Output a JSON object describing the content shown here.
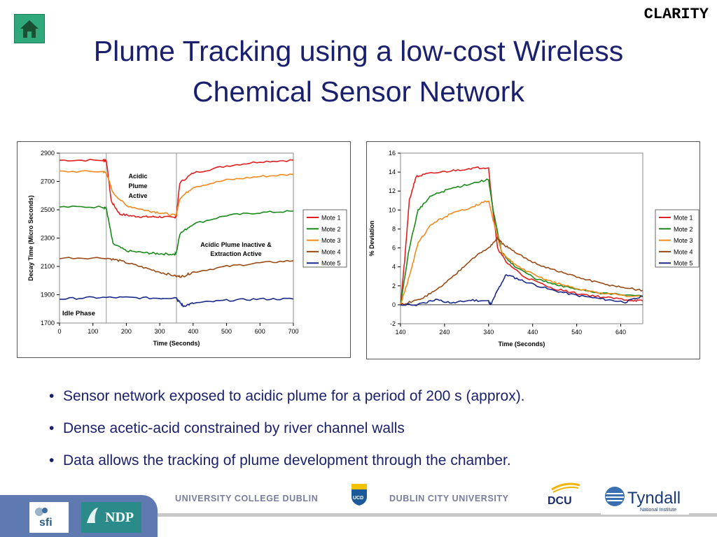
{
  "header": {
    "brand": "CLARITY",
    "title_line1": "Plume Tracking using a low-cost Wireless",
    "title_line2": "Chemical Sensor Network"
  },
  "colors": {
    "mote1": "#e02020",
    "mote2": "#1a8a1a",
    "mote3": "#f08a1e",
    "mote4": "#9a4a14",
    "mote5": "#1a2a8a",
    "title": "#1a1f6e"
  },
  "bullets": [
    "Sensor network exposed to acidic plume for a period of 200 s (approx).",
    "Dense acetic-acid constrained by river channel walls",
    "Data allows the tracking of plume development through the chamber."
  ],
  "footer": {
    "ucd": "UNIVERSITY COLLEGE DUBLIN",
    "dcu": "DUBLIN CITY UNIVERSITY",
    "ucd_logo_text": "UCD",
    "dcu_logo_text": "DCU",
    "tyndall_text": "Tyndall",
    "tyndall_sub": "National Institute",
    "sfi_text": "sfi",
    "ndp_text": "NDP"
  },
  "chart_data": [
    {
      "type": "line",
      "xlabel": "Time (Seconds)",
      "ylabel": "Decay Time (Micro Seconds)",
      "xlim": [
        0,
        700
      ],
      "ylim": [
        1700,
        2900
      ],
      "xticks": [
        0,
        100,
        200,
        300,
        400,
        500,
        600,
        700
      ],
      "yticks": [
        1700,
        1900,
        2100,
        2300,
        2500,
        2700,
        2900
      ],
      "legend": "right",
      "annotations": [
        "Acidic",
        "Plume",
        "Active",
        "Acidic Plume Inactive &",
        "Extraction Active",
        "Idle Phase"
      ],
      "phase_markers": [
        140,
        350
      ],
      "series": [
        {
          "name": "Mote 1",
          "x": [
            0,
            130,
            140,
            155,
            180,
            220,
            260,
            300,
            345,
            350,
            360,
            400,
            500,
            600,
            700
          ],
          "y": [
            2850,
            2850,
            2850,
            2560,
            2470,
            2455,
            2450,
            2450,
            2445,
            2460,
            2690,
            2760,
            2810,
            2840,
            2850
          ]
        },
        {
          "name": "Mote 2",
          "x": [
            0,
            130,
            140,
            160,
            200,
            260,
            300,
            345,
            350,
            360,
            400,
            500,
            600,
            700
          ],
          "y": [
            2520,
            2520,
            2510,
            2260,
            2210,
            2195,
            2190,
            2185,
            2200,
            2330,
            2400,
            2460,
            2480,
            2490
          ]
        },
        {
          "name": "Mote 3",
          "x": [
            0,
            130,
            140,
            160,
            200,
            260,
            300,
            345,
            350,
            360,
            400,
            500,
            600,
            700
          ],
          "y": [
            2770,
            2770,
            2760,
            2620,
            2530,
            2495,
            2480,
            2460,
            2470,
            2580,
            2660,
            2710,
            2735,
            2750
          ]
        },
        {
          "name": "Mote 4",
          "x": [
            0,
            140,
            180,
            240,
            300,
            350,
            370,
            400,
            500,
            600,
            700
          ],
          "y": [
            2160,
            2160,
            2140,
            2100,
            2060,
            2030,
            2030,
            2060,
            2100,
            2125,
            2140
          ]
        },
        {
          "name": "Mote 5",
          "x": [
            0,
            100,
            200,
            300,
            350,
            355,
            370,
            400,
            500,
            600,
            700
          ],
          "y": [
            1870,
            1880,
            1880,
            1875,
            1880,
            1860,
            1820,
            1840,
            1860,
            1870,
            1870
          ]
        }
      ]
    },
    {
      "type": "line",
      "xlabel": "Time (Seconds)",
      "ylabel": "% Deviation",
      "xlim": [
        140,
        690
      ],
      "ylim": [
        -2,
        16
      ],
      "xticks": [
        140,
        240,
        340,
        440,
        540,
        640
      ],
      "yticks": [
        -2,
        0,
        2,
        4,
        6,
        8,
        10,
        12,
        14,
        16
      ],
      "legend": "right",
      "series": [
        {
          "name": "Mote 1",
          "x": [
            140,
            150,
            160,
            175,
            200,
            250,
            300,
            340,
            345,
            360,
            380,
            420,
            480,
            540,
            600,
            660,
            690
          ],
          "y": [
            0,
            5,
            11,
            13.5,
            13.8,
            14.1,
            14.4,
            14.5,
            12,
            6,
            4.5,
            3,
            1.8,
            1.2,
            0.8,
            0.5,
            0.4
          ]
        },
        {
          "name": "Mote 2",
          "x": [
            140,
            160,
            180,
            210,
            250,
            300,
            340,
            350,
            370,
            400,
            450,
            500,
            550,
            600,
            690
          ],
          "y": [
            0,
            6,
            10,
            11.5,
            12.2,
            12.8,
            13.2,
            10,
            5.5,
            4,
            2.7,
            2,
            1.6,
            1.2,
            0.9
          ]
        },
        {
          "name": "Mote 3",
          "x": [
            140,
            160,
            180,
            210,
            250,
            300,
            340,
            350,
            370,
            400,
            450,
            500,
            550,
            600,
            690
          ],
          "y": [
            0,
            3,
            6.5,
            8.5,
            9.5,
            10.3,
            11,
            9,
            5.5,
            4.2,
            3,
            2.2,
            1.6,
            1.2,
            0.8
          ]
        },
        {
          "name": "Mote 4",
          "x": [
            140,
            180,
            220,
            260,
            300,
            340,
            360,
            370,
            400,
            450,
            500,
            550,
            600,
            650,
            690
          ],
          "y": [
            0,
            0.5,
            1.5,
            3,
            4.8,
            6,
            7,
            6.5,
            5.5,
            4.3,
            3.5,
            2.8,
            2.2,
            1.8,
            1.5
          ]
        },
        {
          "name": "Mote 5",
          "x": [
            140,
            180,
            220,
            260,
            300,
            340,
            345,
            360,
            380,
            420,
            480,
            540,
            600,
            650,
            690
          ],
          "y": [
            0,
            0,
            0.5,
            0.2,
            0.5,
            0.4,
            0,
            1.5,
            3.2,
            2.5,
            1.6,
            1.0,
            0.6,
            0.3,
            0.9
          ]
        }
      ]
    }
  ]
}
